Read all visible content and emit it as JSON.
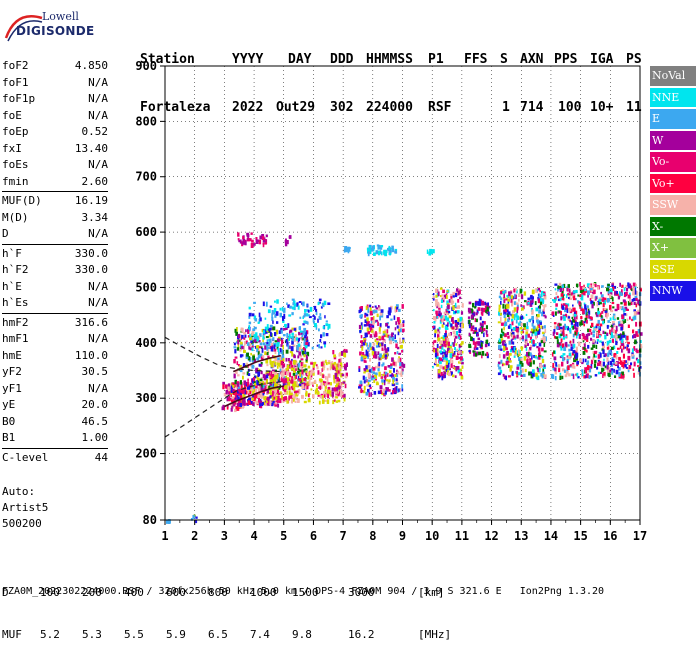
{
  "logo": {
    "line1": "Lowell",
    "line2": "DIGISONDE"
  },
  "header": {
    "labels": [
      "Station",
      "YYYY",
      "DAY",
      "DDD",
      "HHMMSS",
      "P1",
      "FFS",
      "S",
      "AXN",
      "PPS",
      "IGA",
      "PS"
    ],
    "values": [
      "Fortaleza",
      "2022",
      "Out29",
      "302",
      "224000",
      "RSF",
      "",
      "1",
      "714",
      "100",
      "10+",
      "11"
    ]
  },
  "params": [
    [
      [
        "foF2",
        "4.850"
      ],
      [
        "foF1",
        "N/A"
      ],
      [
        "foF1p",
        "N/A"
      ],
      [
        "foE",
        "N/A"
      ],
      [
        "foEp",
        "0.52"
      ],
      [
        "fxI",
        "13.40"
      ],
      [
        "foEs",
        "N/A"
      ],
      [
        "fmin",
        "2.60"
      ]
    ],
    [
      [
        "MUF(D)",
        "16.19"
      ],
      [
        "M(D)",
        "3.34"
      ],
      [
        "D",
        "N/A"
      ]
    ],
    [
      [
        "h`F",
        "330.0"
      ],
      [
        "h`F2",
        "330.0"
      ],
      [
        "h`E",
        "N/A"
      ],
      [
        "h`Es",
        "N/A"
      ]
    ],
    [
      [
        "hmF2",
        "316.6"
      ],
      [
        "hmF1",
        "N/A"
      ],
      [
        "hmE",
        "110.0"
      ],
      [
        "yF2",
        "30.5"
      ],
      [
        "yF1",
        "N/A"
      ],
      [
        "yE",
        "20.0"
      ],
      [
        "B0",
        "46.5"
      ],
      [
        "B1",
        "1.00"
      ]
    ],
    [
      [
        "C-level",
        "44"
      ]
    ]
  ],
  "auto": {
    "line1": "Auto:",
    "line2": "Artist5",
    "line3": "500200"
  },
  "legend": [
    {
      "label": "NoVal",
      "color": "#808080"
    },
    {
      "label": "NNE",
      "color": "#00e5ee"
    },
    {
      "label": "E",
      "color": "#3ca8f0"
    },
    {
      "label": "W",
      "color": "#a4009c"
    },
    {
      "label": "Vo-",
      "color": "#e8006e"
    },
    {
      "label": "Vo+",
      "color": "#ff0040"
    },
    {
      "label": "SSW",
      "color": "#f6b2aa"
    },
    {
      "label": "X-",
      "color": "#007800"
    },
    {
      "label": "X+",
      "color": "#80c040"
    },
    {
      "label": "SSE",
      "color": "#d8d800"
    },
    {
      "label": "NNW",
      "color": "#1a10e8"
    }
  ],
  "bottom": {
    "d_label": "D",
    "d_values": [
      "100",
      "200",
      "400",
      "600",
      "800",
      "1000",
      "1500",
      "3000",
      "[km]"
    ],
    "muf_label": "MUF",
    "muf_values": [
      "5.2",
      "5.3",
      "5.5",
      "5.9",
      "6.5",
      "7.4",
      "9.8",
      "16.2",
      "[MHz]"
    ]
  },
  "footer": "FZA0M_2022302224000.RSF / 320fx256h 50 kHz 5.0 km / DPS-4 FZA0M 904 / 3.9 S 321.6 E   Ion2Png 1.3.20",
  "chart_data": {
    "type": "scatter",
    "title": "",
    "xlabel": "",
    "ylabel": "",
    "xlim": [
      1,
      17
    ],
    "ylim": [
      80,
      900
    ],
    "x_ticks": [
      1,
      2,
      3,
      4,
      5,
      6,
      7,
      8,
      9,
      10,
      11,
      12,
      13,
      14,
      15,
      16,
      17
    ],
    "y_ticks": [
      80,
      200,
      300,
      400,
      500,
      600,
      700,
      800,
      900
    ],
    "grid": "dotted",
    "legend_position": "right",
    "clusters": [
      {
        "x": [
          1.0,
          1.15
        ],
        "y": [
          80,
          85
        ],
        "colors": [
          "#1a10e8",
          "#3ca8f0"
        ],
        "n": 4
      },
      {
        "x": [
          1.85,
          2.05
        ],
        "y": [
          78,
          90
        ],
        "colors": [
          "#1a10e8",
          "#80c040",
          "#3ca8f0"
        ],
        "n": 6
      },
      {
        "x": [
          2.9,
          3.6
        ],
        "y": [
          280,
          330
        ],
        "colors": [
          "#ff0040",
          "#e8006e",
          "#f6b2aa",
          "#a4009c"
        ],
        "n": 80
      },
      {
        "x": [
          3.2,
          4.8
        ],
        "y": [
          290,
          330
        ],
        "colors": [
          "#d8d800",
          "#f6b2aa",
          "#ff0040",
          "#e8006e",
          "#a4009c",
          "#1a10e8"
        ],
        "n": 260
      },
      {
        "x": [
          3.3,
          5.8
        ],
        "y": [
          320,
          430
        ],
        "colors": [
          "#d8d800",
          "#f6b2aa",
          "#e8006e",
          "#a4009c",
          "#3ca8f0",
          "#1a10e8",
          "#007800"
        ],
        "n": 420
      },
      {
        "x": [
          3.8,
          6.5
        ],
        "y": [
          390,
          480
        ],
        "colors": [
          "#3ca8f0",
          "#00e5ee",
          "#1a10e8"
        ],
        "n": 180
      },
      {
        "x": [
          4.5,
          6.9
        ],
        "y": [
          295,
          370
        ],
        "colors": [
          "#d8d800",
          "#f6b2aa",
          "#e8006e"
        ],
        "n": 320
      },
      {
        "x": [
          6.6,
          7.1
        ],
        "y": [
          300,
          390
        ],
        "colors": [
          "#d8d800",
          "#f6b2aa",
          "#e8006e",
          "#a4009c"
        ],
        "n": 80
      },
      {
        "x": [
          7.5,
          9.0
        ],
        "y": [
          310,
          470
        ],
        "colors": [
          "#d8d800",
          "#f6b2aa",
          "#e8006e",
          "#a4009c",
          "#1a10e8",
          "#3ca8f0"
        ],
        "n": 360
      },
      {
        "x": [
          10.0,
          11.0
        ],
        "y": [
          340,
          500
        ],
        "colors": [
          "#f6b2aa",
          "#e8006e",
          "#a4009c",
          "#1a10e8",
          "#00e5ee",
          "#d8d800"
        ],
        "n": 300
      },
      {
        "x": [
          11.2,
          11.9
        ],
        "y": [
          380,
          480
        ],
        "colors": [
          "#a4009c",
          "#1a10e8",
          "#007800",
          "#e8006e"
        ],
        "n": 120
      },
      {
        "x": [
          12.2,
          13.8
        ],
        "y": [
          340,
          500
        ],
        "colors": [
          "#00e5ee",
          "#3ca8f0",
          "#e8006e",
          "#f6b2aa",
          "#a4009c",
          "#1a10e8",
          "#007800",
          "#d8d800"
        ],
        "n": 420
      },
      {
        "x": [
          14.0,
          17.0
        ],
        "y": [
          340,
          510
        ],
        "colors": [
          "#e8006e",
          "#f6b2aa",
          "#a4009c",
          "#1a10e8",
          "#3ca8f0",
          "#00e5ee",
          "#007800",
          "#ff0040"
        ],
        "n": 780
      },
      {
        "x": [
          3.4,
          4.4
        ],
        "y": [
          580,
          600
        ],
        "colors": [
          "#a4009c",
          "#e8006e"
        ],
        "n": 40
      },
      {
        "x": [
          4.9,
          5.2
        ],
        "y": [
          580,
          595
        ],
        "colors": [
          "#a4009c"
        ],
        "n": 6
      },
      {
        "x": [
          7.0,
          7.2
        ],
        "y": [
          568,
          575
        ],
        "colors": [
          "#3ca8f0"
        ],
        "n": 10
      },
      {
        "x": [
          7.8,
          8.8
        ],
        "y": [
          563,
          578
        ],
        "colors": [
          "#00e5ee",
          "#3ca8f0"
        ],
        "n": 50
      },
      {
        "x": [
          9.8,
          10.0
        ],
        "y": [
          563,
          572
        ],
        "colors": [
          "#00e5ee"
        ],
        "n": 6
      }
    ],
    "traces": [
      {
        "style": "dashed",
        "x": [
          1.0,
          1.6,
          2.3,
          3.0,
          3.4,
          3.8,
          4.2,
          4.6,
          5.0
        ],
        "y": [
          230,
          250,
          275,
          300,
          313,
          320,
          325,
          328,
          330
        ]
      },
      {
        "style": "dashed",
        "x": [
          1.0,
          1.5,
          2.2,
          2.8,
          3.2,
          3.6,
          4.0,
          4.5,
          5.0
        ],
        "y": [
          410,
          395,
          375,
          360,
          355,
          352,
          350,
          349,
          348
        ]
      },
      {
        "style": "solid",
        "x": [
          3.0,
          3.4,
          3.8,
          4.2,
          4.6,
          5.0
        ],
        "y": [
          285,
          295,
          303,
          311,
          318,
          322
        ]
      },
      {
        "style": "solid",
        "x": [
          3.3,
          3.7,
          4.1,
          4.5,
          4.9
        ],
        "y": [
          348,
          357,
          366,
          372,
          377
        ]
      }
    ]
  }
}
